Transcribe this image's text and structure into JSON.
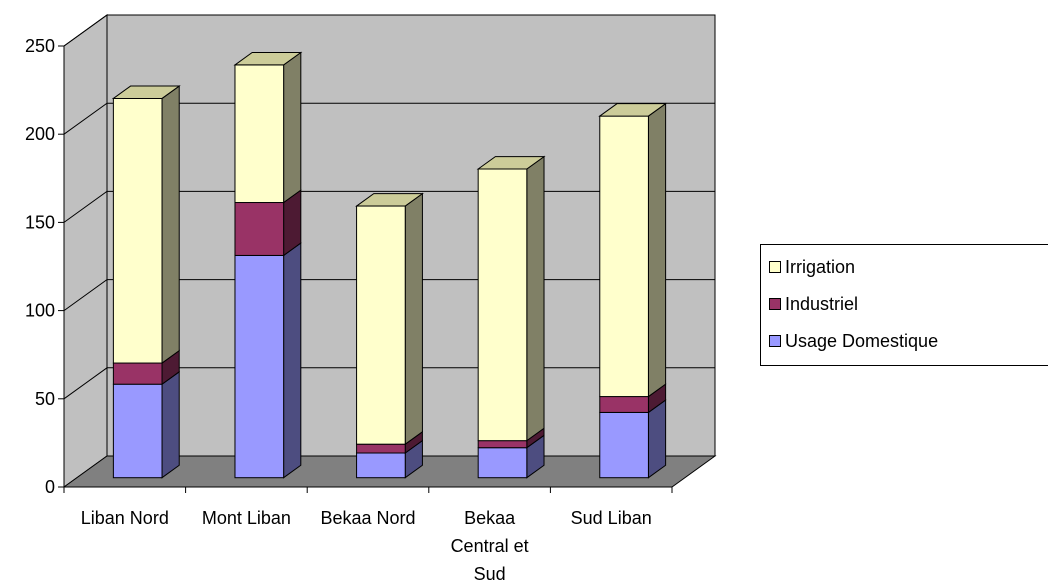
{
  "chart_data": {
    "type": "bar",
    "stacked": true,
    "three_d": true,
    "categories": [
      "Liban Nord",
      "Mont Liban",
      "Bekaa Nord",
      "Bekaa Central et Sud",
      "Sud Liban"
    ],
    "category_label_lines": [
      [
        "Liban Nord"
      ],
      [
        "Mont Liban"
      ],
      [
        "Bekaa Nord"
      ],
      [
        "Bekaa",
        "Central et",
        "Sud"
      ],
      [
        "Sud Liban"
      ]
    ],
    "series": [
      {
        "name": "Usage Domestique",
        "values": [
          53,
          126,
          14,
          17,
          37
        ],
        "color": "#9999ff",
        "side_color": "#4d4d80",
        "top_color": "#c8c8ff"
      },
      {
        "name": "Industriel",
        "values": [
          12,
          30,
          5,
          4,
          9
        ],
        "color": "#993366",
        "side_color": "#4d1a33",
        "top_color": "#c08aa3"
      },
      {
        "name": "Irrigation",
        "values": [
          150,
          78,
          135,
          154,
          159
        ],
        "color": "#ffffcc",
        "side_color": "#808066",
        "top_color": "#cccc99"
      }
    ],
    "ylim": [
      0,
      250
    ],
    "yticks": [
      0,
      50,
      100,
      150,
      200,
      250
    ],
    "ytick_labels": [
      "0",
      "50",
      "100",
      "150",
      "200",
      "250"
    ],
    "title": "",
    "xlabel": "",
    "ylabel": "",
    "grid": true,
    "legend_position": "right",
    "legend_order": [
      "Irrigation",
      "Industriel",
      "Usage Domestique"
    ],
    "wall_color": "#c0c0c0",
    "floor_color": "#808080"
  }
}
